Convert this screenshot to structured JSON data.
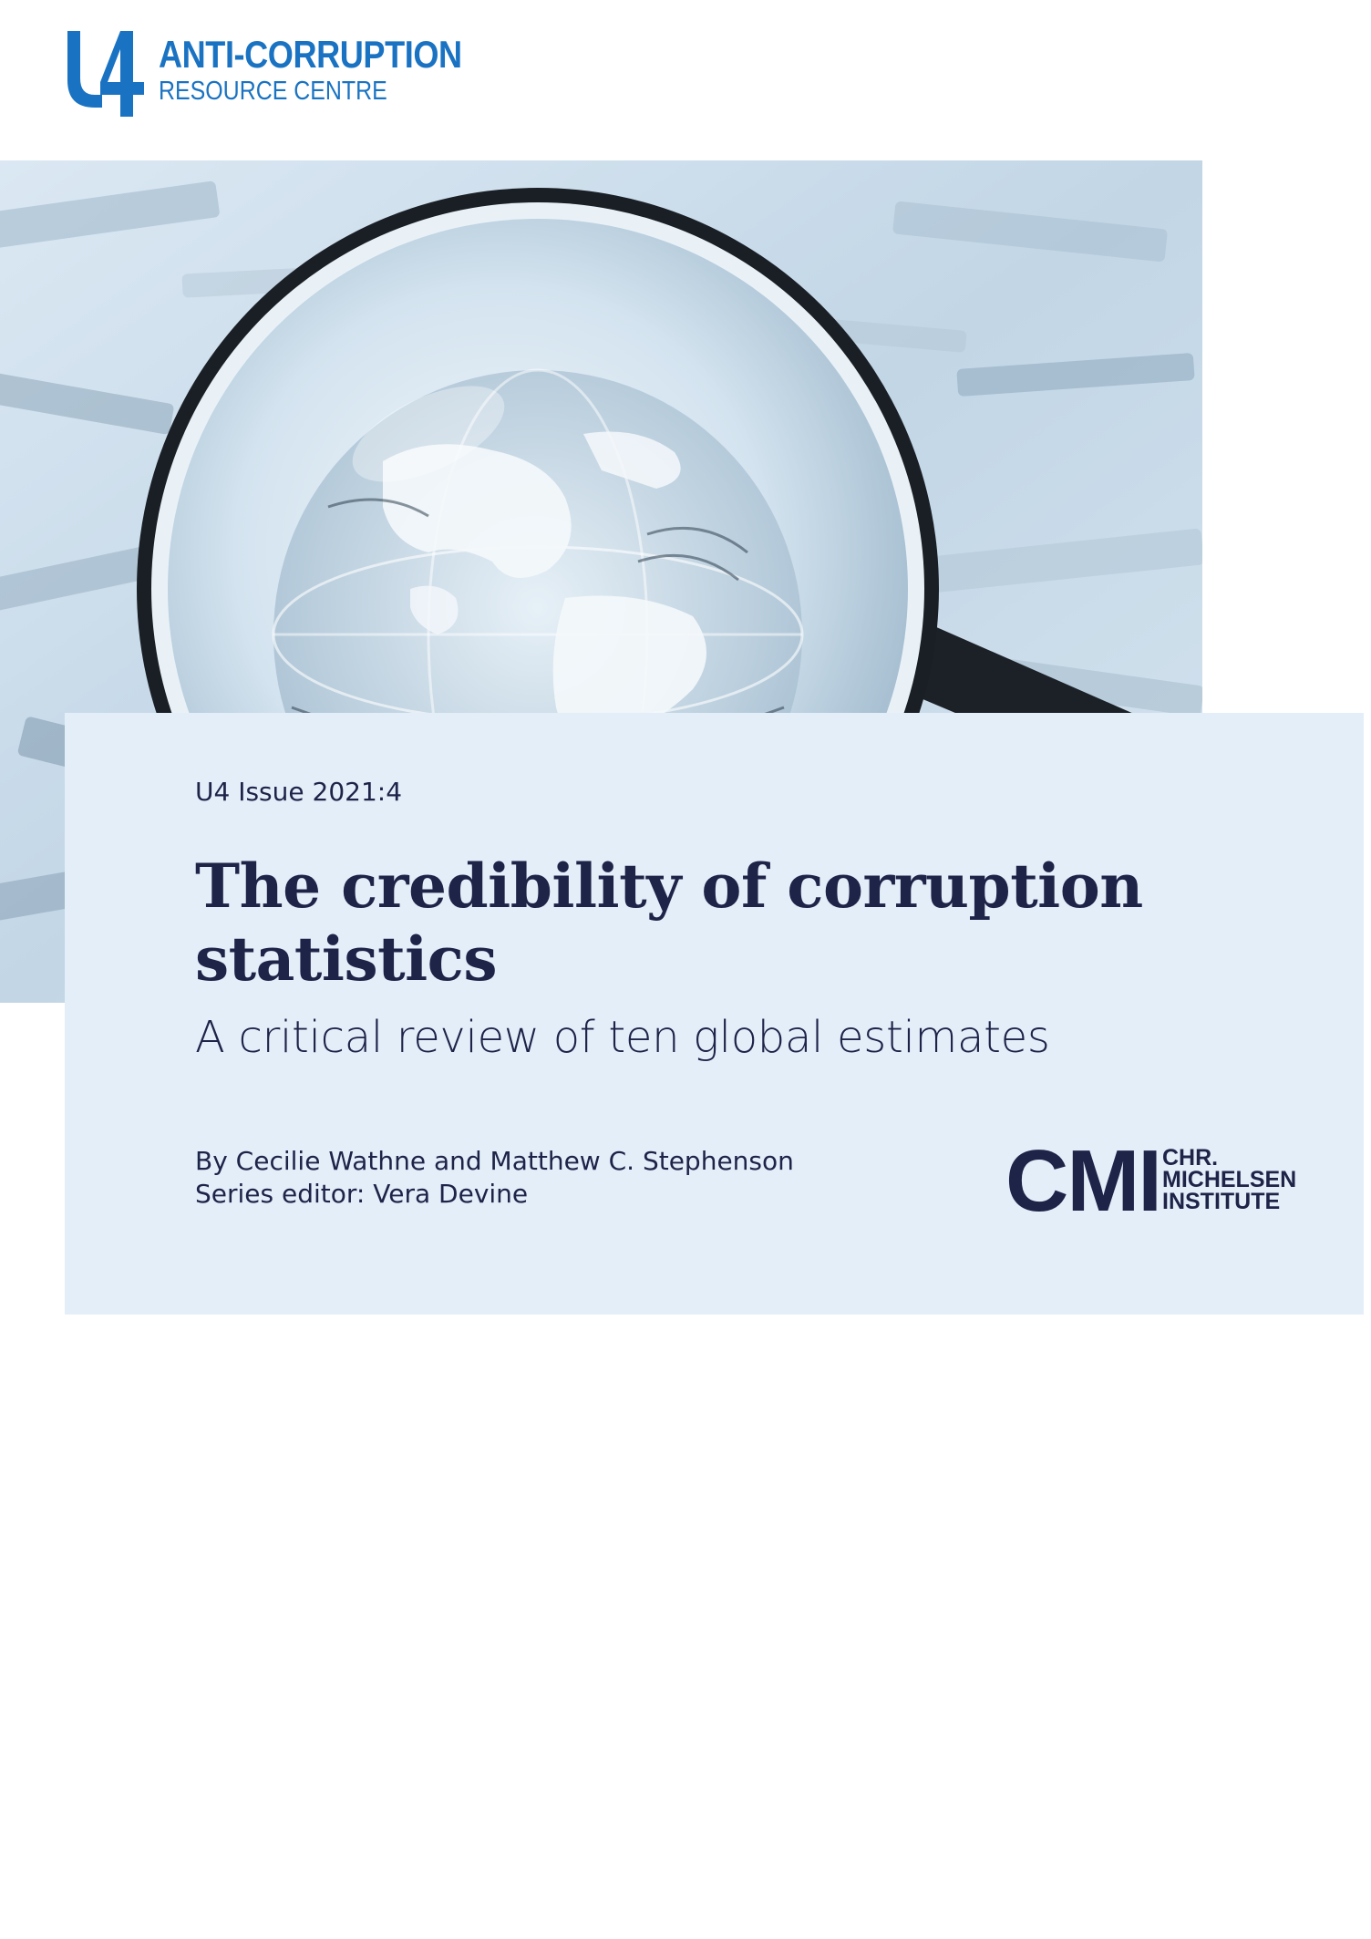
{
  "publisher": {
    "logo_mark": "U4",
    "name_line_1": "ANTI-CORRUPTION",
    "name_line_2": "RESOURCE CENTRE",
    "brand_color": "#1a73c2"
  },
  "cover_image": {
    "subject": "magnifying-glass-over-globe-on-banknotes"
  },
  "document": {
    "issue": "U4 Issue 2021:4",
    "title": "The credibility of corruption statistics",
    "subtitle": "A critical review of ten global estimates",
    "authors_line": "By Cecilie Wathne and Matthew C. Stephenson",
    "editor_line": "Series editor: Vera Devine"
  },
  "partner": {
    "acronym": "CMI",
    "name_line_1": "CHR.",
    "name_line_2": "MICHELSEN",
    "name_line_3": "INSTITUTE"
  },
  "colors": {
    "panel": "#e3eef9",
    "ink": "#1e2348"
  }
}
